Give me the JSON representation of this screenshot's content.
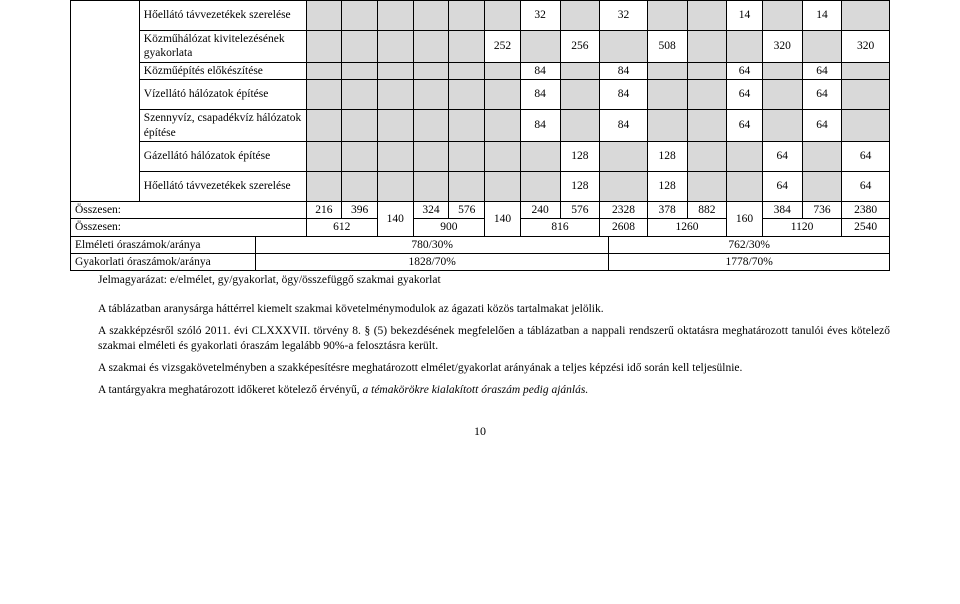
{
  "table": {
    "rows": [
      {
        "label": "Hőellátó távvezetékek szerelése",
        "cells": [
          "",
          "",
          "",
          "",
          "",
          "",
          "32",
          "",
          "32",
          "",
          "",
          "14",
          "",
          "14",
          ""
        ],
        "tall": true,
        "grey_map": [
          1,
          1,
          1,
          1,
          1,
          1,
          0,
          1,
          0,
          1,
          1,
          0,
          1,
          0,
          1
        ]
      },
      {
        "label": "Közműhálózat kivitelezésének gyakorlata",
        "cells": [
          "",
          "",
          "",
          "",
          "",
          "252",
          "",
          "256",
          "",
          "508",
          "",
          "",
          "320",
          "",
          "320"
        ],
        "tall": true,
        "grey_map": [
          1,
          1,
          1,
          1,
          1,
          0,
          1,
          0,
          1,
          0,
          1,
          1,
          0,
          1,
          0
        ]
      },
      {
        "label": "Közműépítés előkészítése",
        "cells": [
          "",
          "",
          "",
          "",
          "",
          "",
          "84",
          "",
          "84",
          "",
          "",
          "64",
          "",
          "64",
          ""
        ],
        "tall": false,
        "grey_map": [
          1,
          1,
          1,
          1,
          1,
          1,
          0,
          1,
          0,
          1,
          1,
          0,
          1,
          0,
          1
        ]
      },
      {
        "label": "Vízellátó hálózatok építése",
        "cells": [
          "",
          "",
          "",
          "",
          "",
          "",
          "84",
          "",
          "84",
          "",
          "",
          "64",
          "",
          "64",
          ""
        ],
        "tall": true,
        "grey_map": [
          1,
          1,
          1,
          1,
          1,
          1,
          0,
          1,
          0,
          1,
          1,
          0,
          1,
          0,
          1
        ]
      },
      {
        "label": "Szennyvíz, csapadékvíz hálózatok építése",
        "cells": [
          "",
          "",
          "",
          "",
          "",
          "",
          "84",
          "",
          "84",
          "",
          "",
          "64",
          "",
          "64",
          ""
        ],
        "tall": true,
        "grey_map": [
          1,
          1,
          1,
          1,
          1,
          1,
          0,
          1,
          0,
          1,
          1,
          0,
          1,
          0,
          1
        ]
      },
      {
        "label": "Gázellátó hálózatok építése",
        "cells": [
          "",
          "",
          "",
          "",
          "",
          "",
          "",
          "128",
          "",
          "128",
          "",
          "",
          "64",
          "",
          "64"
        ],
        "tall": true,
        "grey_map": [
          1,
          1,
          1,
          1,
          1,
          1,
          1,
          0,
          1,
          0,
          1,
          1,
          0,
          1,
          0
        ]
      },
      {
        "label": "Hőellátó távvezetékek szerelése",
        "cells": [
          "",
          "",
          "",
          "",
          "",
          "",
          "",
          "128",
          "",
          "128",
          "",
          "",
          "64",
          "",
          "64"
        ],
        "tall": true,
        "grey_map": [
          1,
          1,
          1,
          1,
          1,
          1,
          1,
          0,
          1,
          0,
          1,
          1,
          0,
          1,
          0
        ]
      }
    ],
    "sum1": {
      "label": "Összesen:",
      "cells_left": [
        "216",
        "396"
      ],
      "merge1": "140",
      "cells_mid": [
        "324",
        "576"
      ],
      "merge2": "140",
      "cells_mid2": [
        "240",
        "576",
        "2328",
        "378",
        "882"
      ],
      "merge3": "160",
      "cells_right": [
        "384",
        "736",
        "2380"
      ]
    },
    "sum2": {
      "label": "Összesen:",
      "cells": [
        "612",
        "900",
        "816",
        "2608",
        "1260",
        "1120",
        "2540"
      ]
    },
    "ratio1": {
      "label": "Elméleti óraszámok/aránya",
      "left": "780/30%",
      "right": "762/30%"
    },
    "ratio2": {
      "label": "Gyakorlati óraszámok/aránya",
      "left": "1828/70%",
      "right": "1778/70%"
    },
    "legend": "Jelmagyarázat: e/elmélet, gy/gyakorlat, ögy/összefüggő szakmai gyakorlat"
  },
  "paragraphs": {
    "p1": "A táblázatban aranysárga háttérrel kiemelt szakmai követelménymodulok az ágazati közös tartalmakat jelölik.",
    "p2": "A szakképzésről szóló 2011. évi CLXXXVII. törvény 8. § (5) bekezdésének megfelelően a táblázatban a nappali rendszerű oktatásra meghatározott tanulói éves kötelező szakmai elméleti és gyakorlati óraszám legalább 90%-a felosztásra került.",
    "p3": "A szakmai és vizsgakövetelményben a szakképesítésre meghatározott elmélet/gyakorlat arányának a teljes képzési idő során kell teljesülnie.",
    "p4a": "A tantárgyakra meghatározott időkeret kötelező érvényű, ",
    "p4b": "a témakörökre kialakított óraszám pedig ajánlás."
  },
  "pagenum": "10"
}
